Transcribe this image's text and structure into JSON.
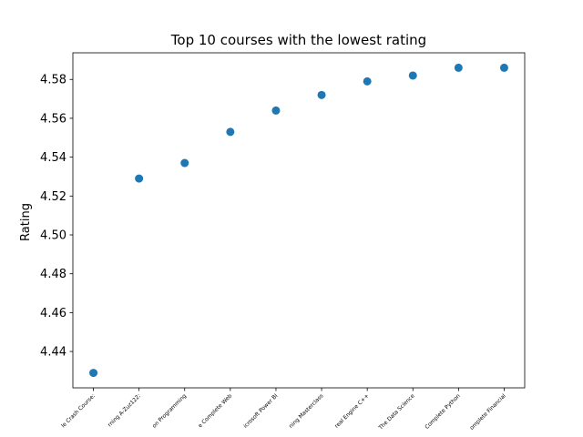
{
  "chart_data": {
    "type": "scatter",
    "title": "Top 10 courses with the lowest rating",
    "xlabel": "",
    "ylabel": "Rating",
    "categories": [
      "le Crash Course:",
      "rning A-Zuz122:",
      "on Programming",
      "e Complete Web",
      "icrosoft Power BI",
      "ning Masterclass",
      "real Engine C++",
      "The Data Science",
      "Complete Python",
      "omplete Financial"
    ],
    "values": [
      4.429,
      4.529,
      4.537,
      4.553,
      4.564,
      4.572,
      4.579,
      4.582,
      4.586,
      4.586
    ],
    "yticks": [
      "4.44",
      "4.46",
      "4.48",
      "4.50",
      "4.52",
      "4.54",
      "4.56",
      "4.58"
    ],
    "ytick_values": [
      4.44,
      4.46,
      4.48,
      4.5,
      4.52,
      4.54,
      4.56,
      4.58
    ],
    "ylim": [
      4.4213,
      4.5937
    ],
    "grid": false,
    "marker_color": "#1f77b4"
  }
}
